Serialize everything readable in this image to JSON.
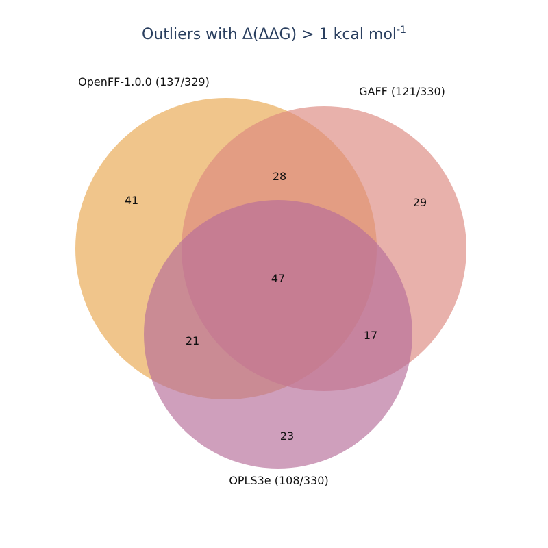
{
  "title": {
    "main": "Outliers with Δ(ΔΔG) > 1 kcal mol",
    "superscript": "-1"
  },
  "colors": {
    "title": "#2a3f5f",
    "openff": "#e8a74f",
    "gaff": "#dc8880",
    "opls": "#b66d9a"
  },
  "sets": [
    {
      "key": "openff",
      "label": "OpenFF-1.0.0 (137/329)"
    },
    {
      "key": "gaff",
      "label": "GAFF (121/330)"
    },
    {
      "key": "opls",
      "label": "OPLS3e (108/330)"
    }
  ],
  "regions": {
    "openff_only": "41",
    "gaff_only": "29",
    "opls_only": "23",
    "openff_gaff": "28",
    "openff_opls": "21",
    "gaff_opls": "17",
    "all_three": "47"
  }
}
